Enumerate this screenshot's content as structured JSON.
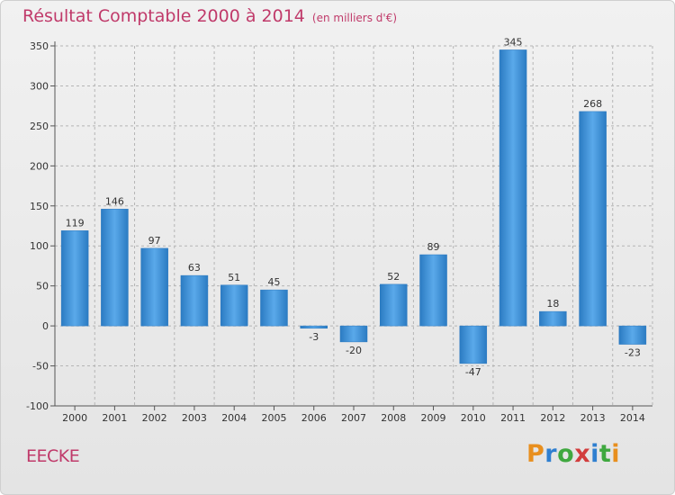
{
  "chart_data": {
    "type": "bar",
    "title": "Résultat Comptable 2000 à 2014",
    "subtitle": "(en milliers d'€)",
    "categories": [
      "2000",
      "2001",
      "2002",
      "2003",
      "2004",
      "2005",
      "2006",
      "2007",
      "2008",
      "2009",
      "2010",
      "2011",
      "2012",
      "2013",
      "2014"
    ],
    "values": [
      119,
      146,
      97,
      63,
      51,
      45,
      -3,
      -20,
      52,
      89,
      -47,
      345,
      18,
      268,
      -23
    ],
    "data_labels": [
      "119",
      "146",
      "97",
      "63",
      "51",
      "45",
      "-3",
      "-20",
      "52",
      "89",
      "-47",
      "345",
      "18",
      "268",
      "-23"
    ],
    "y_ticks": [
      -100,
      -50,
      0,
      50,
      100,
      150,
      200,
      250,
      300,
      350
    ],
    "y_tick_labels": [
      "-100",
      "-50",
      "0",
      "50",
      "100",
      "150",
      "200",
      "250",
      "300",
      "350"
    ],
    "ylim": [
      -100,
      350
    ],
    "grid": true,
    "xlabel": "",
    "ylabel": "",
    "bar_color": "#3a8fd6"
  },
  "footer": {
    "commune": "EECKE",
    "logo_letters": [
      "P",
      "r",
      "o",
      "x",
      "i",
      "t",
      "i"
    ],
    "logo_colors": [
      "#e88f1e",
      "#2f7fd0",
      "#3fa83f",
      "#d23c3c",
      "#2f7fd0",
      "#3fa83f",
      "#e88f1e"
    ]
  }
}
